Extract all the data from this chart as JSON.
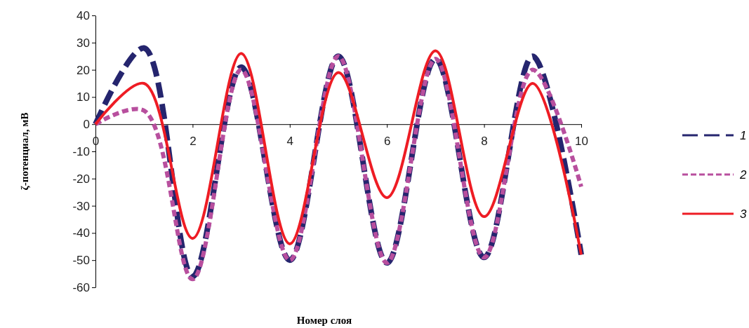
{
  "chart_data": {
    "type": "line",
    "xlabel": "Номер слоя",
    "ylabel": "ζ-потенциал, мВ",
    "x": [
      0,
      1,
      2,
      3,
      4,
      5,
      6,
      7,
      8,
      9,
      10
    ],
    "xlim": [
      0,
      10
    ],
    "xticks": [
      0,
      2,
      4,
      6,
      8,
      10
    ],
    "ylim": [
      -60,
      40
    ],
    "yticks": [
      -60,
      -50,
      -40,
      -30,
      -20,
      -10,
      0,
      10,
      20,
      30,
      40
    ],
    "grid": false,
    "legend": "right",
    "marker": "none",
    "series": [
      {
        "name": "1",
        "color": "#25256e",
        "line_style": "dashed",
        "values": [
          0,
          28,
          -56,
          21,
          -50,
          25,
          -51,
          24,
          -49,
          25,
          -48
        ]
      },
      {
        "name": "2",
        "color": "#b84f9e",
        "line_style": "dotted",
        "values": [
          0,
          5,
          -57,
          20,
          -50,
          25,
          -51,
          24,
          -49,
          20,
          -23
        ]
      },
      {
        "name": "3",
        "color": "#ee1c24",
        "line_style": "solid",
        "values": [
          0,
          15,
          -42,
          26,
          -44,
          19,
          -27,
          27,
          -34,
          15,
          -48
        ]
      }
    ]
  }
}
